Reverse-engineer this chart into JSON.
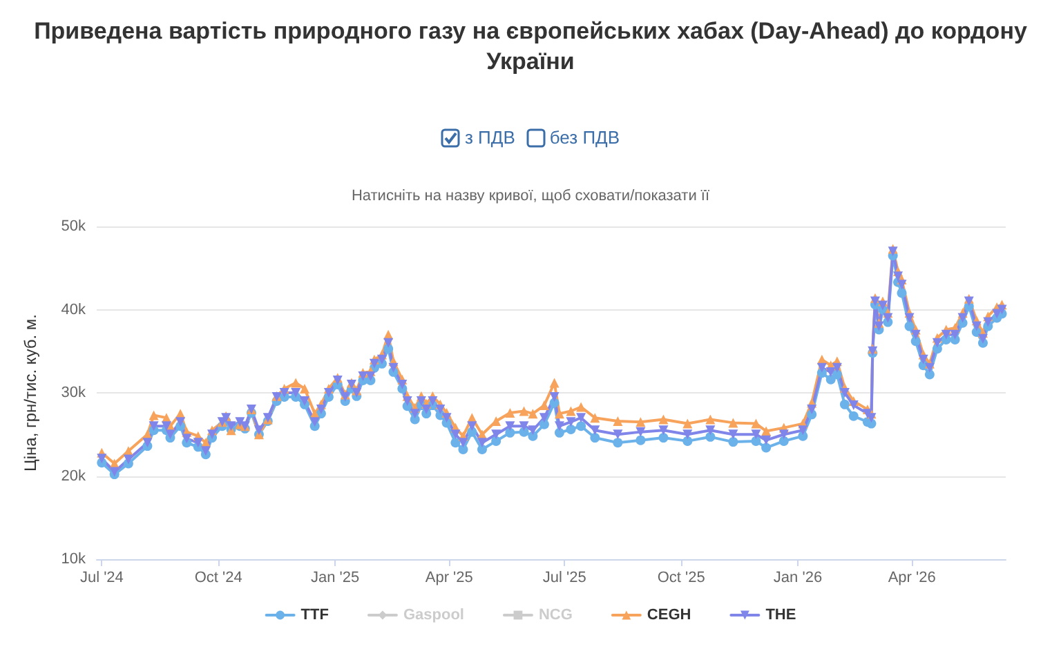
{
  "chart_data": {
    "type": "line",
    "title": "Приведена вартість природного газу на європейських хабах (Day-Ahead) до кордону України",
    "subtitle": "Натисніть на назву кривої, щоб сховати/показати її",
    "ylabel": "Ціна, грн/тис. куб. м.",
    "annotations": [
      "з ПДВ",
      "без ПДВ"
    ],
    "x": [
      "2024-07-01",
      "2024-07-11",
      "2024-07-22",
      "2024-08-06",
      "2024-08-11",
      "2024-08-21",
      "2024-08-24",
      "2024-09-01",
      "2024-09-06",
      "2024-09-15",
      "2024-09-21",
      "2024-09-26",
      "2024-10-04",
      "2024-10-07",
      "2024-10-11",
      "2024-10-18",
      "2024-10-22",
      "2024-10-27",
      "2024-11-02",
      "2024-11-09",
      "2024-11-16",
      "2024-11-22",
      "2024-12-01",
      "2024-12-08",
      "2024-12-16",
      "2024-12-21",
      "2024-12-27",
      "2025-01-03",
      "2025-01-09",
      "2025-01-14",
      "2025-01-18",
      "2025-01-23",
      "2025-01-29",
      "2025-02-01",
      "2025-02-07",
      "2025-02-12",
      "2025-02-16",
      "2025-02-23",
      "2025-02-27",
      "2025-03-05",
      "2025-03-10",
      "2025-03-14",
      "2025-03-19",
      "2025-03-25",
      "2025-03-30",
      "2025-04-06",
      "2025-04-12",
      "2025-04-19",
      "2025-04-27",
      "2025-05-08",
      "2025-05-19",
      "2025-05-30",
      "2025-06-06",
      "2025-06-15",
      "2025-06-23",
      "2025-06-27",
      "2025-07-06",
      "2025-07-14",
      "2025-07-25",
      "2025-08-12",
      "2025-08-30",
      "2025-09-17",
      "2025-10-06",
      "2025-10-24",
      "2025-11-11",
      "2025-11-29",
      "2025-12-07",
      "2025-12-21",
      "2026-01-05",
      "2026-01-12",
      "2026-01-20",
      "2026-01-27",
      "2026-02-01",
      "2026-02-07",
      "2026-02-14",
      "2026-02-25",
      "2026-02-28",
      "2026-03-01",
      "2026-03-03",
      "2026-03-06",
      "2026-03-09",
      "2026-03-13",
      "2026-03-17",
      "2026-03-21",
      "2026-03-24",
      "2026-03-30",
      "2026-04-04",
      "2026-04-10",
      "2026-04-15",
      "2026-04-21",
      "2026-04-28",
      "2026-05-05",
      "2026-05-11",
      "2026-05-16",
      "2026-05-22",
      "2026-05-27",
      "2026-05-31",
      "2026-06-07",
      "2026-06-11"
    ],
    "series": [
      {
        "name": "TTF",
        "color": "#6cb2ea",
        "marker": "circle",
        "values": [
          21.6,
          20.2,
          21.5,
          23.6,
          25.5,
          25.5,
          24.6,
          26,
          24,
          23.5,
          22.6,
          24.6,
          26,
          26.6,
          25.6,
          26,
          25.7,
          27.6,
          25,
          26.6,
          29,
          29.5,
          29.5,
          28.6,
          26,
          27.5,
          29.5,
          31,
          29,
          30.5,
          29.6,
          31.5,
          31.5,
          33,
          33.5,
          35.3,
          32.5,
          30.5,
          28.4,
          26.8,
          28.5,
          27.5,
          28.5,
          27.3,
          26.4,
          24,
          23.2,
          25.3,
          23.2,
          24.2,
          25.2,
          25.3,
          24.8,
          26.2,
          28.8,
          25.2,
          25.6,
          26,
          24.6,
          24,
          24.3,
          24.6,
          24.2,
          24.7,
          24.1,
          24.2,
          23.4,
          24.2,
          24.8,
          27.4,
          32.4,
          31.6,
          32.2,
          28.6,
          27.2,
          26.5,
          26.3,
          34.8,
          40.6,
          37.6,
          40,
          38.5,
          46.5,
          43.3,
          42,
          38,
          36.2,
          33.3,
          32.2,
          35.3,
          36.4,
          36.4,
          38.4,
          40.4,
          37.3,
          36,
          38,
          39,
          39.5
        ]
      },
      {
        "name": "Gaspool",
        "color": "#cccccc",
        "marker": "diamond",
        "values": [
          null,
          null,
          null,
          null,
          null,
          null,
          null,
          null,
          null,
          null,
          null,
          null,
          null,
          null,
          null,
          null,
          null,
          null,
          null,
          null,
          null,
          null,
          null,
          null,
          null,
          null,
          null,
          null,
          null,
          null,
          null,
          null,
          null,
          null,
          null,
          null,
          null,
          null,
          null,
          null,
          null,
          null,
          null,
          null,
          null,
          null,
          null,
          null,
          null,
          null,
          null,
          null,
          null,
          null,
          null,
          null,
          null,
          null,
          null,
          null,
          null,
          null,
          null,
          null,
          null,
          null,
          null,
          null,
          null,
          null,
          null,
          null,
          null,
          null,
          null,
          null,
          null,
          null,
          null,
          null,
          null,
          null,
          null,
          null,
          null,
          null,
          null,
          null,
          null,
          null,
          null,
          null,
          null,
          null,
          null,
          null,
          null,
          null,
          null
        ]
      },
      {
        "name": "NCG",
        "color": "#cccccc",
        "marker": "square",
        "values": [
          null,
          null,
          null,
          null,
          null,
          null,
          null,
          null,
          null,
          null,
          null,
          null,
          null,
          null,
          null,
          null,
          null,
          null,
          null,
          null,
          null,
          null,
          null,
          null,
          null,
          null,
          null,
          null,
          null,
          null,
          null,
          null,
          null,
          null,
          null,
          null,
          null,
          null,
          null,
          null,
          null,
          null,
          null,
          null,
          null,
          null,
          null,
          null,
          null,
          null,
          null,
          null,
          null,
          null,
          null,
          null,
          null,
          null,
          null,
          null,
          null,
          null,
          null,
          null,
          null,
          null,
          null,
          null,
          null,
          null,
          null,
          null,
          null,
          null,
          null,
          null,
          null,
          null,
          null,
          null,
          null,
          null,
          null,
          null,
          null,
          null,
          null,
          null,
          null,
          null,
          null,
          null,
          null,
          null,
          null,
          null,
          null,
          null,
          null
        ]
      },
      {
        "name": "CEGH",
        "color": "#f7a35c",
        "marker": "triangle",
        "values": [
          22.8,
          21.5,
          23,
          25,
          27.3,
          27,
          26,
          27.5,
          25.3,
          24.8,
          24,
          25.5,
          26.5,
          27.2,
          25.5,
          26.2,
          26,
          28,
          25,
          26.8,
          29.6,
          30.5,
          31.2,
          30.5,
          27.5,
          28.6,
          30.5,
          31.8,
          29.8,
          31.2,
          30.3,
          32.4,
          32.6,
          34,
          34.6,
          37,
          33.8,
          31.6,
          29.6,
          28.2,
          29.6,
          28.7,
          29.6,
          28.6,
          27.6,
          25.8,
          24.8,
          27,
          25,
          26.6,
          27.6,
          27.8,
          27.5,
          28.5,
          31.2,
          27.5,
          27.8,
          28.3,
          27,
          26.6,
          26.5,
          26.8,
          26.3,
          26.8,
          26.4,
          26.3,
          25.4,
          25.8,
          26.3,
          28.8,
          34,
          33.3,
          33.8,
          30.6,
          29,
          28,
          27.5,
          35.3,
          41.4,
          38.4,
          41,
          39.6,
          47.3,
          44.6,
          43.6,
          39.6,
          37.6,
          34.6,
          33.5,
          36.6,
          37.6,
          37.8,
          39.6,
          41.3,
          38.7,
          37.2,
          39.2,
          40.3,
          40.6
        ]
      },
      {
        "name": "THE",
        "color": "#8085e9",
        "marker": "triangle",
        "values": [
          22.1,
          20.5,
          22,
          24,
          26,
          26,
          25,
          26.5,
          24.5,
          24,
          23,
          25,
          26.5,
          27,
          26,
          26.5,
          26,
          28,
          25.5,
          27,
          29.5,
          30,
          30,
          29,
          26.5,
          28,
          30,
          31.5,
          29.5,
          31,
          30,
          32,
          32,
          33.5,
          34,
          36,
          33,
          31,
          29,
          27.5,
          29,
          28,
          29,
          28,
          27,
          25,
          24,
          26,
          24,
          25,
          26,
          26,
          25.5,
          27,
          29.5,
          26,
          26.5,
          27,
          25.5,
          25,
          25.3,
          25.5,
          25,
          25.5,
          25,
          25,
          24.3,
          25,
          25.5,
          28,
          33,
          32.5,
          33,
          30,
          28.5,
          27.5,
          27,
          35,
          41,
          38,
          40.5,
          39,
          47,
          44,
          43,
          39,
          37,
          34,
          33,
          36,
          37,
          37,
          39,
          41,
          38,
          36.5,
          38.5,
          39.5,
          40
        ]
      }
    ],
    "xlim": [
      "2024-06-27",
      "2026-06-14"
    ],
    "xticks": [
      {
        "value": "2024-07-01",
        "label": "Jul '24"
      },
      {
        "value": "2024-10-01",
        "label": "Oct '24"
      },
      {
        "value": "2025-01-01",
        "label": "Jan '25"
      },
      {
        "value": "2025-04-01",
        "label": "Apr '25"
      },
      {
        "value": "2025-07-01",
        "label": "Jul '25"
      },
      {
        "value": "2025-10-01",
        "label": "Oct '25"
      },
      {
        "value": "2026-01-01",
        "label": "Jan '26"
      },
      {
        "value": "2026-04-01",
        "label": "Apr '26"
      }
    ],
    "ylim": [
      10,
      50
    ],
    "yticks": [
      {
        "value": 10,
        "label": "10k"
      },
      {
        "value": 20,
        "label": "20k"
      },
      {
        "value": 30,
        "label": "30k"
      },
      {
        "value": 40,
        "label": "40k"
      },
      {
        "value": 50,
        "label": "50k"
      }
    ],
    "grid": "y",
    "legend": "bottom",
    "line_style": "solid"
  }
}
